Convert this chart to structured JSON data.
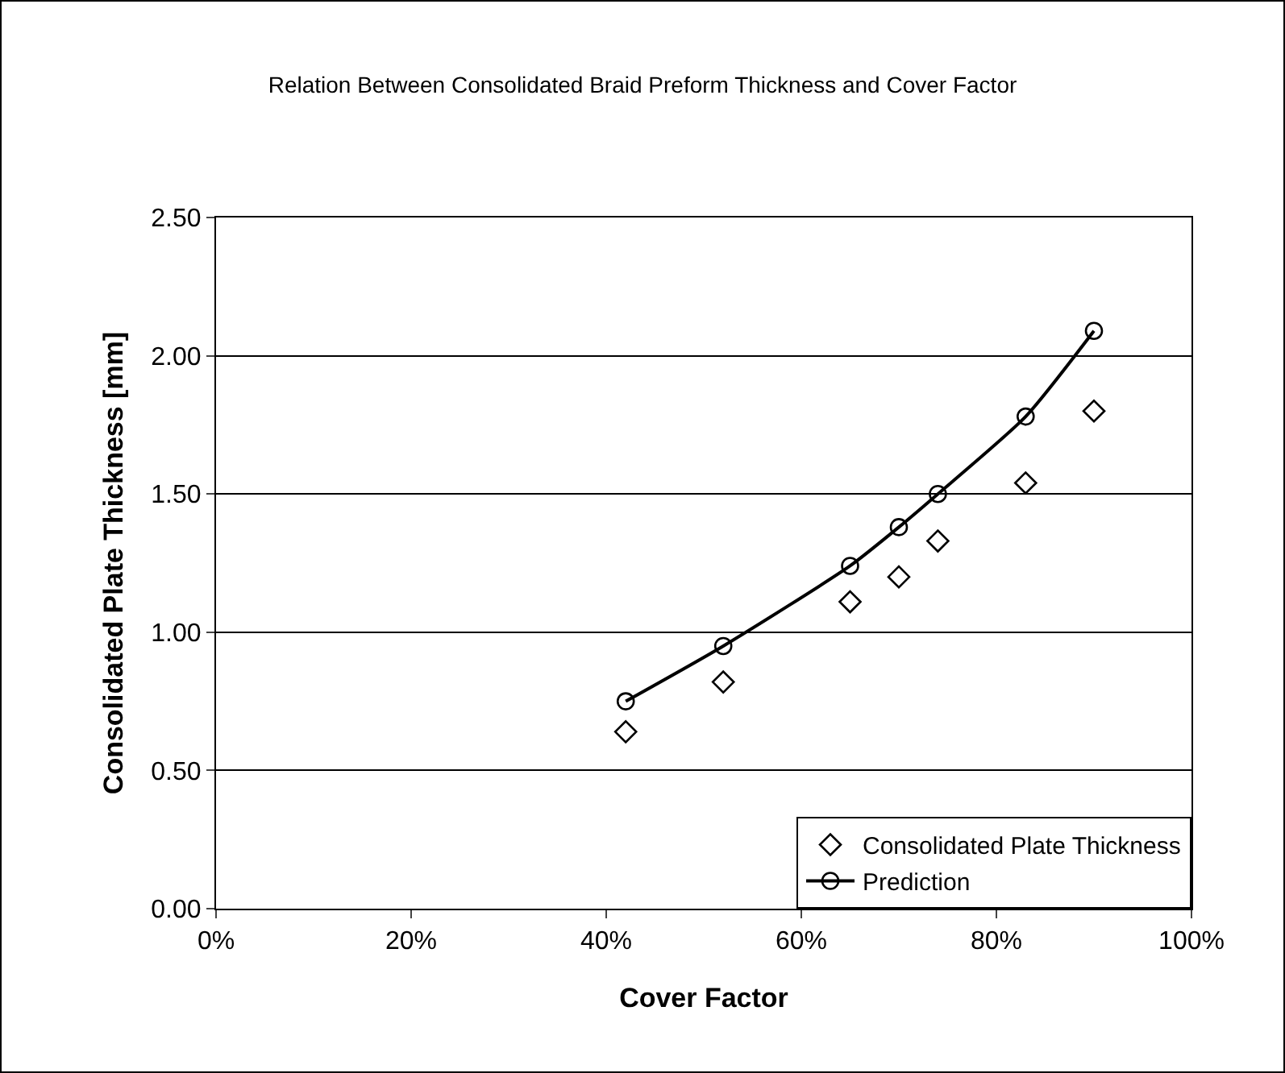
{
  "chart_data": {
    "type": "scatter",
    "title": "Relation Between Consolidated Braid Preform Thickness and Cover Factor",
    "xlabel": "Cover Factor",
    "ylabel": "Consolidated Plate Thickness [mm]",
    "x": [
      0.42,
      0.52,
      0.65,
      0.7,
      0.74,
      0.83,
      0.9
    ],
    "series": [
      {
        "name": "Consolidated Plate Thickness",
        "marker": "diamond",
        "color": "#000000",
        "values": [
          0.64,
          0.82,
          1.11,
          1.2,
          1.33,
          1.54,
          1.8
        ]
      },
      {
        "name": "Prediction",
        "type": "line",
        "marker": "circle",
        "color": "#000000",
        "values": [
          0.75,
          0.95,
          1.24,
          1.38,
          1.5,
          1.78,
          2.09
        ]
      }
    ],
    "xlim": [
      0,
      1
    ],
    "xticks": [
      {
        "value": 0,
        "label": "0%"
      },
      {
        "value": 0.2,
        "label": "20%"
      },
      {
        "value": 0.4,
        "label": "40%"
      },
      {
        "value": 0.6,
        "label": "60%"
      },
      {
        "value": 0.8,
        "label": "80%"
      },
      {
        "value": 1,
        "label": "100%"
      }
    ],
    "ylim": [
      0,
      2.5
    ],
    "yticks": [
      {
        "value": 0,
        "label": "0.00"
      },
      {
        "value": 0.5,
        "label": "0.50"
      },
      {
        "value": 1,
        "label": "1.00"
      },
      {
        "value": 1.5,
        "label": "1.50"
      },
      {
        "value": 2,
        "label": "2.00"
      },
      {
        "value": 2.5,
        "label": "2.50"
      }
    ],
    "grid": "y",
    "legend": "bottom right"
  }
}
